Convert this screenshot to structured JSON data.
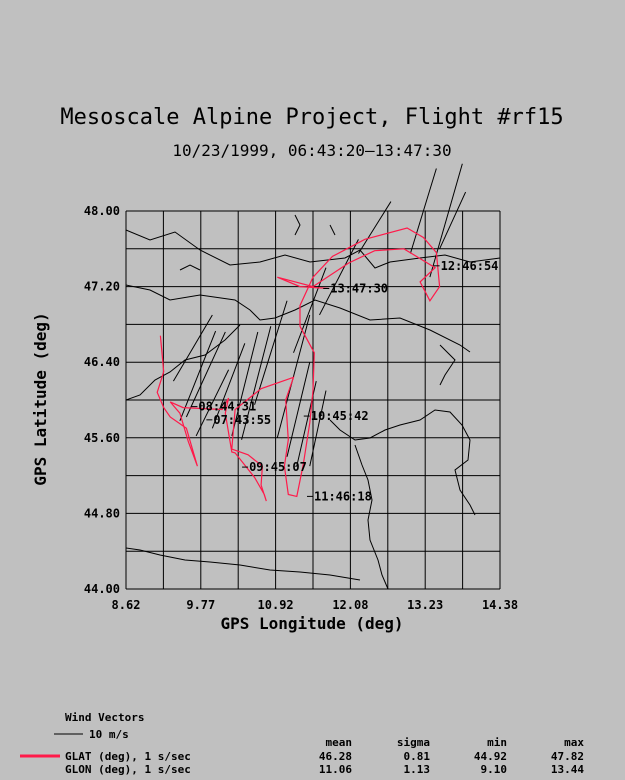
{
  "chart_data": {
    "type": "line",
    "title": "Mesoscale Alpine Project, Flight #rf15",
    "subtitle": "10/23/1999, 06:43:20–13:47:30",
    "xlabel": "GPS Longitude (deg)",
    "ylabel": "GPS Latitude (deg)",
    "xlim": [
      8.62,
      14.38
    ],
    "ylim": [
      44.0,
      48.0
    ],
    "x_ticks": [
      "8.62",
      "9.77",
      "10.92",
      "12.08",
      "13.23",
      "14.38"
    ],
    "y_ticks": [
      "44.00",
      "44.80",
      "45.60",
      "46.40",
      "47.20",
      "48.00"
    ],
    "grid": true,
    "track_color": "#ff1a4a",
    "series": [
      {
        "name": "GLAT (deg), 1 s/sec",
        "points": [
          [
            9.15,
            46.68
          ],
          [
            9.2,
            46.3
          ],
          [
            9.1,
            46.08
          ],
          [
            9.2,
            45.92
          ],
          [
            9.3,
            45.82
          ],
          [
            9.55,
            45.7
          ],
          [
            9.72,
            45.3
          ],
          [
            9.58,
            45.56
          ],
          [
            9.45,
            45.86
          ],
          [
            9.3,
            45.98
          ],
          [
            9.5,
            45.92
          ],
          [
            10.1,
            45.9
          ],
          [
            10.2,
            46.02
          ],
          [
            10.15,
            45.86
          ],
          [
            10.25,
            45.45
          ],
          [
            10.3,
            45.44
          ],
          [
            10.6,
            45.18
          ],
          [
            10.75,
            45.0
          ],
          [
            10.78,
            44.93
          ],
          [
            10.7,
            45.1
          ],
          [
            10.72,
            45.3
          ],
          [
            10.5,
            45.42
          ],
          [
            10.25,
            45.48
          ],
          [
            10.3,
            45.9
          ],
          [
            10.7,
            46.12
          ],
          [
            11.2,
            46.24
          ],
          [
            11.08,
            46.0
          ],
          [
            11.12,
            45.58
          ],
          [
            11.06,
            45.3
          ],
          [
            11.12,
            45.0
          ],
          [
            11.25,
            44.98
          ],
          [
            11.35,
            45.32
          ],
          [
            11.45,
            45.76
          ],
          [
            11.5,
            46.1
          ],
          [
            11.52,
            46.5
          ],
          [
            11.3,
            46.78
          ],
          [
            11.3,
            47.0
          ],
          [
            11.5,
            47.3
          ],
          [
            11.8,
            47.52
          ],
          [
            12.3,
            47.7
          ],
          [
            12.95,
            47.82
          ],
          [
            13.2,
            47.72
          ],
          [
            13.4,
            47.56
          ],
          [
            13.45,
            47.2
          ],
          [
            13.3,
            47.05
          ],
          [
            13.15,
            47.25
          ],
          [
            13.38,
            47.4
          ],
          [
            12.9,
            47.6
          ],
          [
            12.45,
            47.58
          ],
          [
            12.05,
            47.45
          ],
          [
            11.5,
            47.2
          ],
          [
            10.95,
            47.3
          ],
          [
            11.3,
            47.2
          ],
          [
            11.75,
            47.18
          ]
        ]
      }
    ],
    "time_labels": [
      {
        "text": "13:47:30",
        "lon": 11.75,
        "lat": 47.18
      },
      {
        "text": "12:46:54",
        "lon": 13.45,
        "lat": 47.42
      },
      {
        "text": "08:44:31",
        "lon": 9.72,
        "lat": 45.93
      },
      {
        "text": "07:43:55",
        "lon": 9.95,
        "lat": 45.79
      },
      {
        "text": "10:45:42",
        "lon": 11.45,
        "lat": 45.83
      },
      {
        "text": "09:45:07",
        "lon": 10.5,
        "lat": 45.29
      },
      {
        "text": "11:46:18",
        "lon": 11.5,
        "lat": 44.98
      }
    ],
    "wind_vectors": [
      [
        9.45,
        45.78,
        0.55,
        0.95
      ],
      [
        9.55,
        45.82,
        0.6,
        0.9
      ],
      [
        9.7,
        45.62,
        0.5,
        0.7
      ],
      [
        9.95,
        45.7,
        0.5,
        0.9
      ],
      [
        10.25,
        45.62,
        0.4,
        1.1
      ],
      [
        10.4,
        45.58,
        0.45,
        1.2
      ],
      [
        10.95,
        45.6,
        0.5,
        1.3
      ],
      [
        11.1,
        45.4,
        0.35,
        1.0
      ],
      [
        11.25,
        45.3,
        0.3,
        0.9
      ],
      [
        11.45,
        45.3,
        0.25,
        0.8
      ],
      [
        11.2,
        46.5,
        0.5,
        0.9
      ],
      [
        11.6,
        46.9,
        0.6,
        0.8
      ],
      [
        12.2,
        47.55,
        0.5,
        0.55
      ],
      [
        13.0,
        47.55,
        0.4,
        0.9
      ],
      [
        13.3,
        47.3,
        0.5,
        1.2
      ],
      [
        13.45,
        47.6,
        0.4,
        0.6
      ],
      [
        9.35,
        46.2,
        0.6,
        0.7
      ],
      [
        10.6,
        45.95,
        0.5,
        1.1
      ]
    ]
  },
  "legend": {
    "wind_title": "Wind Vectors",
    "wind_scale": "10 m/s",
    "stat_headers": [
      "mean",
      "sigma",
      "min",
      "max"
    ],
    "rows": [
      {
        "label": "GLAT (deg), 1 s/sec",
        "mean": "46.28",
        "sigma": "0.81",
        "min": "44.92",
        "max": "47.82"
      },
      {
        "label": "GLON (deg), 1 s/sec",
        "mean": "11.06",
        "sigma": "1.13",
        "min": "9.10",
        "max": "13.44"
      }
    ]
  }
}
